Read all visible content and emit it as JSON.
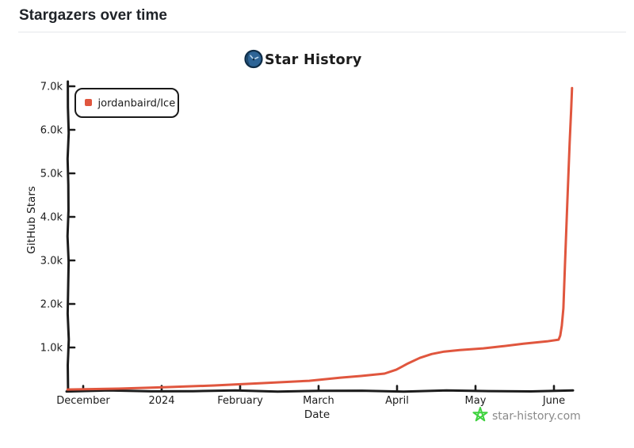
{
  "page": {
    "title": "Stargazers over time"
  },
  "chart": {
    "title": "Star History",
    "legend_label": "jordanbaird/Ice",
    "watermark_text": "star-history.com",
    "colors": {
      "series": "#e0563e",
      "axis": "#1c1c1c",
      "watermark_text": "#8a8a8a",
      "watermark_star": "#3fd23f",
      "logo_fill": "#2d6496",
      "logo_stroke": "#0f2d47",
      "divider": "#e6e8eb",
      "title_text": "#1f2328"
    }
  },
  "chart_data": {
    "type": "line",
    "title": "Star History",
    "xlabel": "Date",
    "ylabel": "GitHub Stars",
    "x_tick_labels": [
      "December",
      "2024",
      "February",
      "March",
      "April",
      "May",
      "June"
    ],
    "y_tick_labels": [
      "1.0k",
      "2.0k",
      "3.0k",
      "4.0k",
      "5.0k",
      "6.0k",
      "7.0k"
    ],
    "y_tick_values": [
      1000,
      2000,
      3000,
      4000,
      5000,
      6000,
      7000
    ],
    "xlim_months": [
      -0.25,
      6.3
    ],
    "ylim": [
      0,
      7100
    ],
    "grid": false,
    "legend_position": "top-left",
    "series": [
      {
        "name": "jordanbaird/Ice",
        "color": "#e0563e",
        "x_unit": "months (0 = December tick, 1 = 2024/January, 6 = June)",
        "points": [
          [
            -0.2,
            35
          ],
          [
            0.45,
            55
          ],
          [
            1.06,
            90
          ],
          [
            1.67,
            127
          ],
          [
            2.27,
            180
          ],
          [
            2.88,
            235
          ],
          [
            3.28,
            307
          ],
          [
            3.54,
            345
          ],
          [
            3.84,
            400
          ],
          [
            3.99,
            490
          ],
          [
            4.14,
            635
          ],
          [
            4.29,
            760
          ],
          [
            4.44,
            850
          ],
          [
            4.6,
            905
          ],
          [
            4.8,
            940
          ],
          [
            5.1,
            980
          ],
          [
            5.35,
            1030
          ],
          [
            5.61,
            1085
          ],
          [
            5.91,
            1140
          ],
          [
            6.06,
            1180
          ],
          [
            6.08,
            1270
          ],
          [
            6.1,
            1500
          ],
          [
            6.12,
            1900
          ],
          [
            6.14,
            2900
          ],
          [
            6.17,
            4300
          ],
          [
            6.2,
            5700
          ],
          [
            6.22,
            6500
          ],
          [
            6.23,
            6960
          ]
        ]
      }
    ]
  }
}
